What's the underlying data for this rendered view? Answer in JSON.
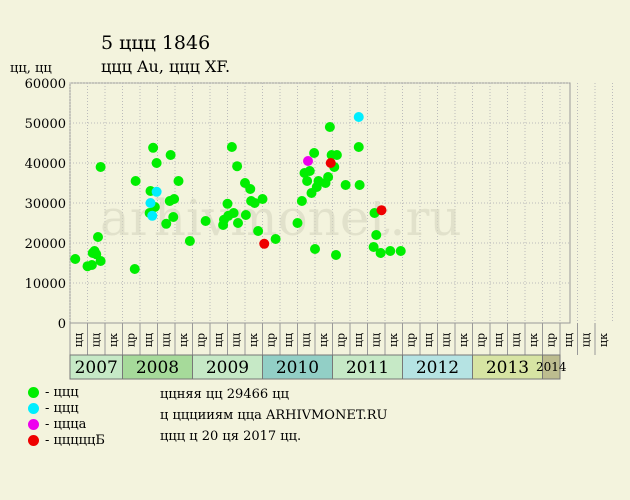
{
  "title": "5 ццц 1846",
  "subtitle": "ццц Au, ццц XF.",
  "y_unit": "цц, цц",
  "watermark": "arhivmonet.ru",
  "legend": [
    {
      "label": "- ццц",
      "color": "#00EE00"
    },
    {
      "label": "- ццц",
      "color": "#00EEFF"
    },
    {
      "label": "- цццa",
      "color": "#EE00EE"
    },
    {
      "label": "- цццццБ",
      "color": "#EE0000"
    }
  ],
  "notes": [
    "ццняя цц 29466 цц",
    "ц цццииям цца ARHIVMONET.RU",
    "ццц ц 20 ця 2017 цц."
  ],
  "chart_data": {
    "type": "scatter",
    "ylim": [
      0,
      60000
    ],
    "yticks": [
      0,
      10000,
      20000,
      30000,
      40000,
      50000,
      60000
    ],
    "slot_labels": [
      "цц",
      "цц",
      "цк",
      "цр",
      "цц",
      "цц",
      "цк",
      "цр",
      "цц",
      "цц",
      "цк",
      "цр",
      "цц",
      "цц",
      "цк",
      "цр",
      "цц",
      "цц",
      "цк",
      "цр",
      "цц",
      "цц",
      "цк",
      "цр",
      "цц",
      "цц",
      "цк",
      "цр",
      "цц",
      "цц",
      "цк"
    ],
    "years": [
      {
        "label": "2007",
        "start": 0,
        "span": 3,
        "color": "#C6E9C6"
      },
      {
        "label": "2008",
        "start": 3,
        "span": 4,
        "color": "#A6DA9A"
      },
      {
        "label": "2009",
        "start": 7,
        "span": 4,
        "color": "#C6E9C6"
      },
      {
        "label": "2010",
        "start": 11,
        "span": 4,
        "color": "#92CFC6"
      },
      {
        "label": "2011",
        "start": 15,
        "span": 4,
        "color": "#C6E9C6"
      },
      {
        "label": "2012",
        "start": 19,
        "span": 4,
        "color": "#B5E3E3"
      },
      {
        "label": "2013",
        "start": 23,
        "span": 4,
        "color": "#D7E4A3"
      },
      {
        "label": "2014",
        "start": 27,
        "span": 1,
        "color": "#BDBD8F"
      }
    ],
    "series": [
      {
        "name": "ццц",
        "color": "#00EE00",
        "points": [
          [
            0.3,
            16000
          ],
          [
            1.0,
            14200
          ],
          [
            1.25,
            14500
          ],
          [
            1.3,
            17500
          ],
          [
            1.4,
            18000
          ],
          [
            1.5,
            17200
          ],
          [
            1.6,
            21500
          ],
          [
            1.75,
            39000
          ],
          [
            1.75,
            15500
          ],
          [
            3.7,
            13500
          ],
          [
            3.75,
            35500
          ],
          [
            4.55,
            27500
          ],
          [
            4.6,
            33000
          ],
          [
            4.75,
            43800
          ],
          [
            4.85,
            29000
          ],
          [
            4.95,
            40000
          ],
          [
            5.5,
            24800
          ],
          [
            5.7,
            30500
          ],
          [
            5.75,
            42000
          ],
          [
            5.9,
            26500
          ],
          [
            5.95,
            31000
          ],
          [
            6.2,
            35500
          ],
          [
            6.85,
            20500
          ],
          [
            7.75,
            25500
          ],
          [
            8.75,
            24500
          ],
          [
            8.8,
            25800
          ],
          [
            9.0,
            29800
          ],
          [
            9.05,
            26800
          ],
          [
            9.25,
            44000
          ],
          [
            9.35,
            27500
          ],
          [
            9.55,
            39200
          ],
          [
            9.6,
            25000
          ],
          [
            10.0,
            35000
          ],
          [
            10.05,
            27000
          ],
          [
            10.3,
            33500
          ],
          [
            10.35,
            30500
          ],
          [
            10.55,
            30000
          ],
          [
            10.75,
            23000
          ],
          [
            11.0,
            31000
          ],
          [
            11.75,
            21000
          ],
          [
            13.0,
            25000
          ],
          [
            13.25,
            30500
          ],
          [
            13.4,
            37500
          ],
          [
            13.55,
            35500
          ],
          [
            13.7,
            38000
          ],
          [
            13.8,
            32500
          ],
          [
            13.95,
            42500
          ],
          [
            14.0,
            18500
          ],
          [
            14.1,
            34000
          ],
          [
            14.2,
            35500
          ],
          [
            14.6,
            35000
          ],
          [
            14.75,
            36500
          ],
          [
            14.85,
            49000
          ],
          [
            14.95,
            42000
          ],
          [
            15.1,
            39000
          ],
          [
            15.2,
            17000
          ],
          [
            15.25,
            42000
          ],
          [
            15.75,
            34500
          ],
          [
            16.5,
            44000
          ],
          [
            16.55,
            34500
          ],
          [
            17.35,
            19000
          ],
          [
            17.4,
            27500
          ],
          [
            17.5,
            22000
          ],
          [
            17.75,
            17500
          ],
          [
            18.3,
            18000
          ],
          [
            18.9,
            18000
          ]
        ]
      },
      {
        "name": "ццц",
        "color": "#00EEFF",
        "points": [
          [
            4.6,
            30000
          ],
          [
            4.7,
            26800
          ],
          [
            4.95,
            32800
          ],
          [
            16.5,
            51500
          ]
        ]
      },
      {
        "name": "цццa",
        "color": "#EE00EE",
        "points": [
          [
            13.6,
            40500
          ]
        ]
      },
      {
        "name": "цццццБ",
        "color": "#EE0000",
        "points": [
          [
            11.1,
            19800
          ],
          [
            14.9,
            40000
          ],
          [
            17.8,
            28200
          ]
        ]
      }
    ]
  }
}
